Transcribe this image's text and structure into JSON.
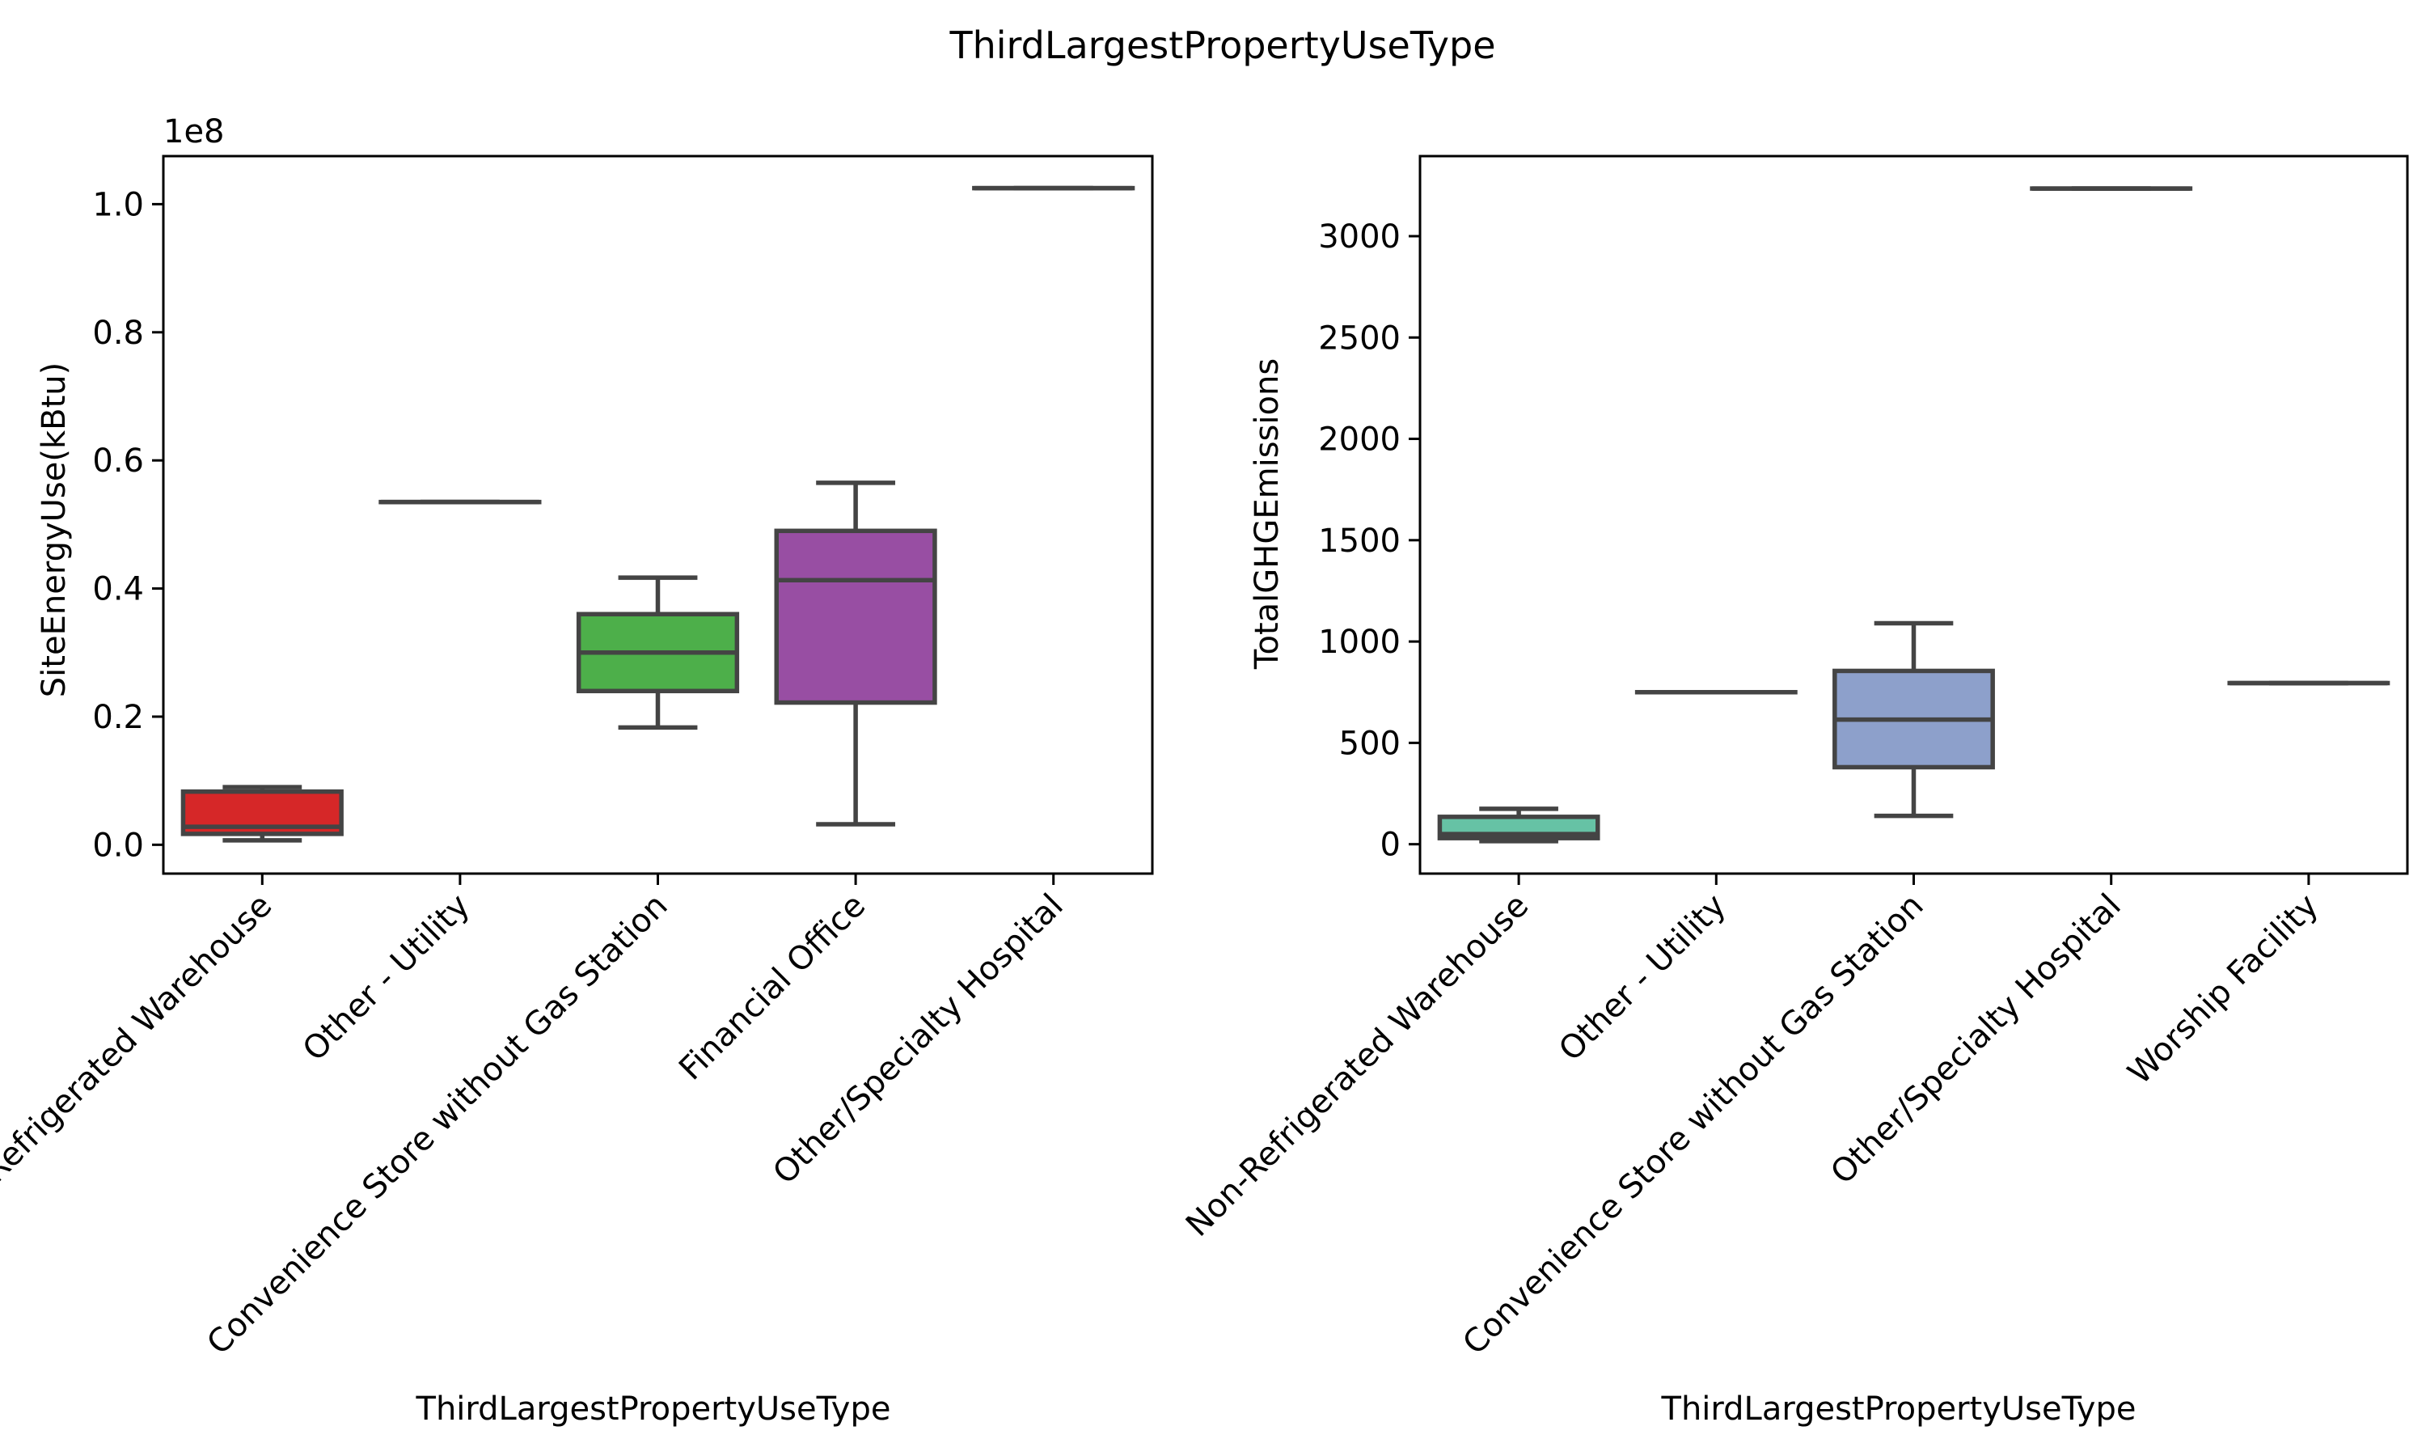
{
  "figure": {
    "title": "ThirdLargestPropertyUseType",
    "line_color": "#444444"
  },
  "chart_data": [
    {
      "type": "box",
      "xlabel": "ThirdLargestPropertyUseType",
      "ylabel": "SiteEnergyUse(kBtu)",
      "y_offset_text": "1e8",
      "y_tick_values": [
        0.0,
        0.2,
        0.4,
        0.6,
        0.8,
        1.0
      ],
      "y_tick_labels": [
        "0.0",
        "0.2",
        "0.4",
        "0.6",
        "0.8",
        "1.0"
      ],
      "ylim": [
        -0.045,
        1.075
      ],
      "y_scale_note": "values in units of 1e8",
      "categories": [
        "Non-Refrigerated Warehouse",
        "Other - Utility",
        "Convenience Store without Gas Station",
        "Financial Office",
        "Other/Specialty Hospital"
      ],
      "boxes": [
        {
          "name": "Non-Refrigerated Warehouse",
          "color": "#d62728",
          "whislo": 0.007,
          "q1": 0.017,
          "median": 0.028,
          "q3": 0.083,
          "whishi": 0.09
        },
        {
          "name": "Other - Utility",
          "color": "#377eb8",
          "whislo": 0.535,
          "q1": 0.535,
          "median": 0.535,
          "q3": 0.535,
          "whishi": 0.535
        },
        {
          "name": "Convenience Store without Gas Station",
          "color": "#4daf4a",
          "whislo": 0.183,
          "q1": 0.24,
          "median": 0.3,
          "q3": 0.36,
          "whishi": 0.417
        },
        {
          "name": "Financial Office",
          "color": "#984ea3",
          "whislo": 0.032,
          "q1": 0.222,
          "median": 0.413,
          "q3": 0.49,
          "whishi": 0.565
        },
        {
          "name": "Other/Specialty Hospital",
          "color": "#ff7f00",
          "whislo": 1.025,
          "q1": 1.025,
          "median": 1.025,
          "q3": 1.025,
          "whishi": 1.025
        }
      ]
    },
    {
      "type": "box",
      "xlabel": "ThirdLargestPropertyUseType",
      "ylabel": "TotalGHGEmissions",
      "y_offset_text": "",
      "y_tick_values": [
        0,
        500,
        1000,
        1500,
        2000,
        2500,
        3000
      ],
      "y_tick_labels": [
        "0",
        "500",
        "1000",
        "1500",
        "2000",
        "2500",
        "3000"
      ],
      "ylim": [
        -145,
        3395
      ],
      "categories": [
        "Non-Refrigerated Warehouse",
        "Other - Utility",
        "Convenience Store without Gas Station",
        "Other/Specialty Hospital",
        "Worship Facility"
      ],
      "boxes": [
        {
          "name": "Non-Refrigerated Warehouse",
          "color": "#66c2a5",
          "whislo": 15,
          "q1": 30,
          "median": 50,
          "q3": 135,
          "whishi": 175
        },
        {
          "name": "Other - Utility",
          "color": "#fc8d62",
          "whislo": 750,
          "q1": 750,
          "median": 750,
          "q3": 750,
          "whishi": 750
        },
        {
          "name": "Convenience Store without Gas Station",
          "color": "#8da0cb",
          "whislo": 140,
          "q1": 380,
          "median": 615,
          "q3": 855,
          "whishi": 1090
        },
        {
          "name": "Other/Specialty Hospital",
          "color": "#e78ac3",
          "whislo": 3235,
          "q1": 3235,
          "median": 3235,
          "q3": 3235,
          "whishi": 3235
        },
        {
          "name": "Worship Facility",
          "color": "#a6d854",
          "whislo": 795,
          "q1": 795,
          "median": 795,
          "q3": 795,
          "whishi": 795
        }
      ]
    }
  ]
}
